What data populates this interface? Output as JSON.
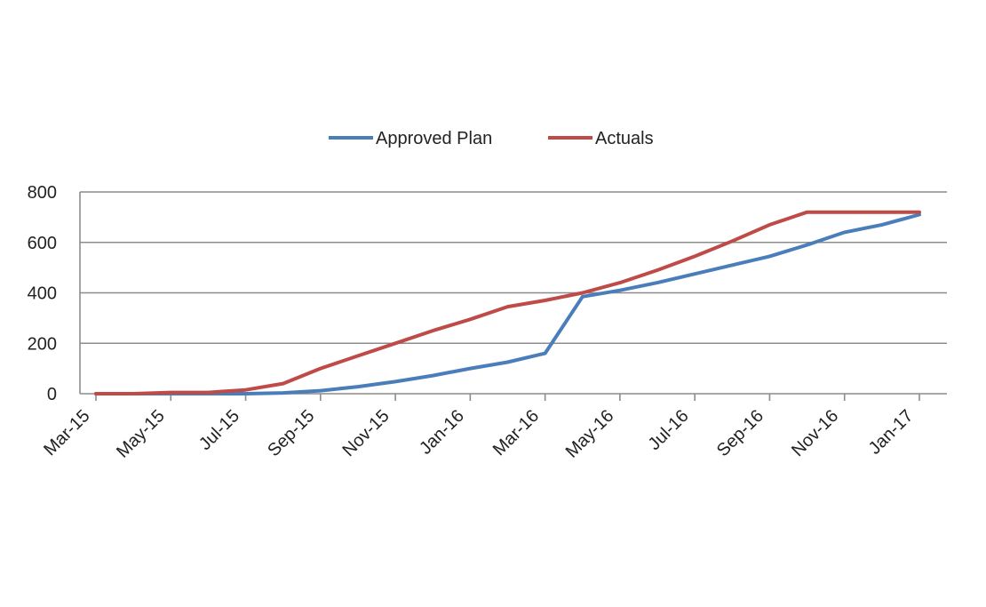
{
  "chart_data": {
    "type": "line",
    "categories": [
      "Mar-15",
      "May-15",
      "Jul-15",
      "Sep-15",
      "Nov-15",
      "Jan-16",
      "Mar-16",
      "May-16",
      "Jul-16",
      "Sep-16",
      "Nov-16",
      "Jan-17"
    ],
    "y_ticks": [
      0,
      200,
      400,
      600,
      800
    ],
    "ylim": [
      0,
      800
    ],
    "xlim": [
      "2015-03",
      "2017-01"
    ],
    "grid": "horizontal",
    "legend_position": "top",
    "title": "",
    "xlabel": "",
    "ylabel": "",
    "series": [
      {
        "name": "Approved Plan",
        "color": "#4a7ebb",
        "points": [
          {
            "x": "2015-03",
            "y": 0
          },
          {
            "x": "2015-04",
            "y": 0
          },
          {
            "x": "2015-05",
            "y": 0
          },
          {
            "x": "2015-06",
            "y": 0
          },
          {
            "x": "2015-07",
            "y": 0
          },
          {
            "x": "2015-08",
            "y": 3
          },
          {
            "x": "2015-09",
            "y": 12
          },
          {
            "x": "2015-10",
            "y": 28
          },
          {
            "x": "2015-11",
            "y": 48
          },
          {
            "x": "2015-12",
            "y": 72
          },
          {
            "x": "2016-01",
            "y": 100
          },
          {
            "x": "2016-02",
            "y": 125
          },
          {
            "x": "2016-03",
            "y": 160
          },
          {
            "x": "2016-04",
            "y": 385
          },
          {
            "x": "2016-05",
            "y": 410
          },
          {
            "x": "2016-06",
            "y": 440
          },
          {
            "x": "2016-07",
            "y": 475
          },
          {
            "x": "2016-08",
            "y": 510
          },
          {
            "x": "2016-09",
            "y": 545
          },
          {
            "x": "2016-10",
            "y": 590
          },
          {
            "x": "2016-11",
            "y": 640
          },
          {
            "x": "2016-12",
            "y": 670
          },
          {
            "x": "2017-01",
            "y": 710
          }
        ]
      },
      {
        "name": "Actuals",
        "color": "#be4b48",
        "points": [
          {
            "x": "2015-03",
            "y": 0
          },
          {
            "x": "2015-04",
            "y": 0
          },
          {
            "x": "2015-05",
            "y": 5
          },
          {
            "x": "2015-06",
            "y": 5
          },
          {
            "x": "2015-07",
            "y": 15
          },
          {
            "x": "2015-08",
            "y": 40
          },
          {
            "x": "2015-09",
            "y": 100
          },
          {
            "x": "2015-10",
            "y": 150
          },
          {
            "x": "2015-11",
            "y": 200
          },
          {
            "x": "2015-12",
            "y": 250
          },
          {
            "x": "2016-01",
            "y": 295
          },
          {
            "x": "2016-02",
            "y": 345
          },
          {
            "x": "2016-03",
            "y": 370
          },
          {
            "x": "2016-04",
            "y": 400
          },
          {
            "x": "2016-05",
            "y": 440
          },
          {
            "x": "2016-06",
            "y": 490
          },
          {
            "x": "2016-07",
            "y": 545
          },
          {
            "x": "2016-08",
            "y": 605
          },
          {
            "x": "2016-09",
            "y": 670
          },
          {
            "x": "2016-10",
            "y": 720
          },
          {
            "x": "2016-11",
            "y": 720
          },
          {
            "x": "2016-12",
            "y": 720
          },
          {
            "x": "2017-01",
            "y": 720
          }
        ]
      }
    ]
  }
}
